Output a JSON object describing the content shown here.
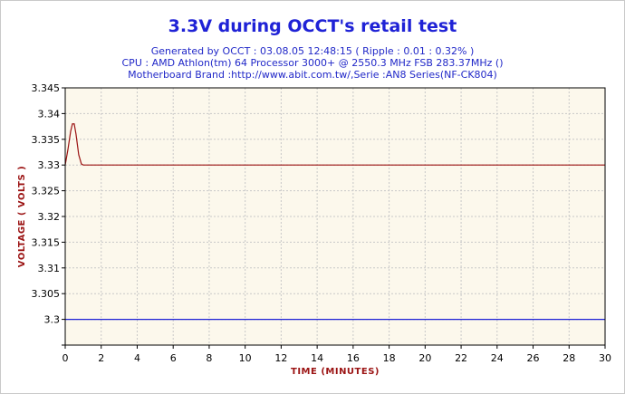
{
  "colors": {
    "title": "#1f22d6",
    "subtitle": "#2128c8",
    "plot_bg": "#fcf8ec",
    "grid": "#c8c8c8",
    "series_3v3": "#9b1313",
    "series_ref": "#1f22d6",
    "axis_title": "#9b1313"
  },
  "chart_data": {
    "type": "line",
    "title": "3.3V during OCCT's retail test",
    "subtitle_lines": [
      "Generated by OCCT : 03.08.05 12:48:15 ( Ripple : 0.01 : 0.32% )",
      "CPU : AMD Athlon(tm) 64 Processor 3000+ @ 2550.3 MHz FSB 283.37MHz ()",
      "Motherboard Brand :http://www.abit.com.tw/,Serie :AN8 Series(NF-CK804)"
    ],
    "xlabel": "TIME (MINUTES)",
    "ylabel": "VOLTAGE ( VOLTS )",
    "xlim": [
      0,
      30
    ],
    "ylim": [
      3.295,
      3.345
    ],
    "x_ticks": [
      0,
      2,
      4,
      6,
      8,
      10,
      12,
      14,
      16,
      18,
      20,
      22,
      24,
      26,
      28,
      30
    ],
    "y_ticks": [
      3.295,
      3.3,
      3.305,
      3.31,
      3.315,
      3.32,
      3.325,
      3.33,
      3.335,
      3.34,
      3.345
    ],
    "x_tick_labels": [
      "0",
      "2",
      "4",
      "6",
      "8",
      "10",
      "12",
      "14",
      "16",
      "18",
      "20",
      "22",
      "24",
      "26",
      "28",
      "30"
    ],
    "y_tick_labels": [
      "",
      "3.3",
      "3.305",
      "3.31",
      "3.315",
      "3.32",
      "3.325",
      "3.33",
      "3.335",
      "3.34",
      "3.345"
    ],
    "grid": true,
    "legend": "none",
    "series": [
      {
        "color": "#9b1313",
        "x": [
          0,
          0.15,
          0.3,
          0.4,
          0.5,
          0.6,
          0.75,
          0.9,
          1.0,
          30
        ],
        "y": [
          3.33,
          3.333,
          3.3365,
          3.338,
          3.338,
          3.336,
          3.332,
          3.3302,
          3.33,
          3.33
        ]
      },
      {
        "color": "#1f22d6",
        "x": [
          0,
          30
        ],
        "y": [
          3.3,
          3.3
        ]
      }
    ]
  }
}
